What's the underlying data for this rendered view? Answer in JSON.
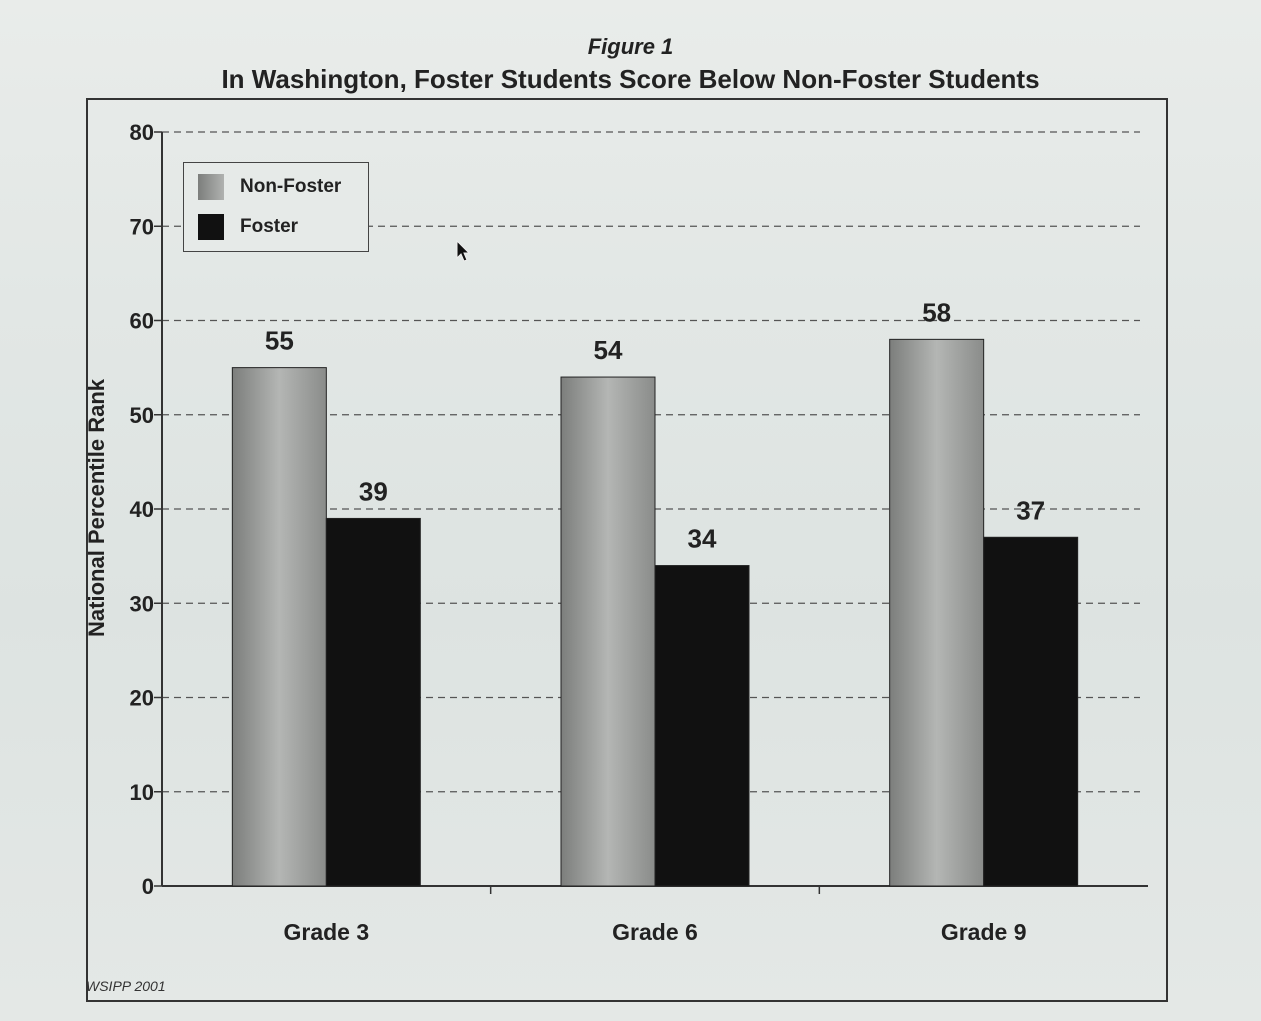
{
  "header": {
    "figure_label": "Figure 1",
    "title": "In Washington, Foster Students Score Below Non-Foster Students"
  },
  "footer": {
    "source": "WSIPP 2001"
  },
  "colors": {
    "non_foster": "#8f918f",
    "foster": "#111111",
    "grid": "#555555"
  },
  "chart_data": {
    "type": "bar",
    "title": "In Washington, Foster Students Score Below Non-Foster Students",
    "xlabel": "",
    "ylabel": "National Percentile Rank",
    "ylim": [
      0,
      80
    ],
    "yticks": [
      0,
      10,
      20,
      30,
      40,
      50,
      60,
      70,
      80
    ],
    "categories": [
      "Grade 3",
      "Grade 6",
      "Grade 9"
    ],
    "series": [
      {
        "name": "Non-Foster",
        "values": [
          55,
          54,
          58
        ]
      },
      {
        "name": "Foster",
        "values": [
          39,
          34,
          37
        ]
      }
    ],
    "data_labels": true,
    "grid": true,
    "legend_position": "top-left"
  }
}
